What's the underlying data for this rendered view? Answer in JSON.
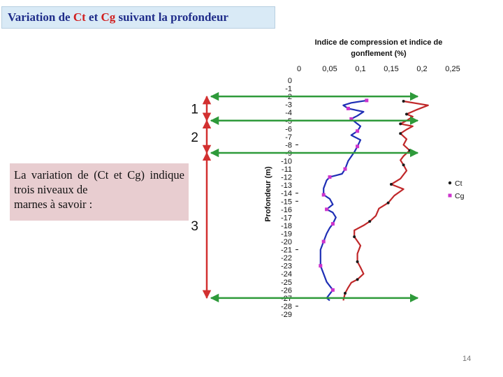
{
  "title": {
    "prefix": "Variation de ",
    "ct": "Ct",
    "middle": " et ",
    "cg": "Cg",
    "suffix": " suivant la profondeur"
  },
  "note": "La variation de (Ct et Cg) indique trois niveaux de",
  "note_last": "marnes à savoir :",
  "page_number": "14",
  "colors": {
    "ct": "#c0282a",
    "cg": "#1f2fb5",
    "ct_marker": "#1a1a1a",
    "cg_marker": "#cc33cc",
    "arrow_green": "#2e9a3a",
    "arrow_red": "#d23030"
  },
  "levels": [
    {
      "label": "1",
      "top_depth": -2,
      "bottom_depth": -5
    },
    {
      "label": "2",
      "top_depth": -5,
      "bottom_depth": -9
    },
    {
      "label": "3",
      "top_depth": -9,
      "bottom_depth": -27
    }
  ],
  "chart_data": {
    "type": "line",
    "title_lines": [
      "Indice de compression et indice de",
      "gonflement (%)"
    ],
    "ylabel": "Profondeur (m)",
    "xlim": [
      0,
      0.25
    ],
    "ylim": [
      -29,
      0
    ],
    "x_ticks": [
      "0",
      "0,05",
      "0,1",
      "0,15",
      "0,2",
      "0,25"
    ],
    "y_ticks": [
      "0",
      "-1",
      "-2",
      "-3",
      "-4",
      "-5",
      "-6",
      "-7",
      "-8",
      "-9",
      "-10",
      "-11",
      "-12",
      "-13",
      "-14",
      "-15",
      "-16",
      "-17",
      "-18",
      "-19",
      "-20",
      "-21",
      "-22",
      "-23",
      "-24",
      "-25",
      "-26",
      "-27",
      "-28",
      "-29"
    ],
    "y_tick_dash_depths": [
      -8,
      -9,
      -14,
      -15,
      -21,
      -27,
      -28
    ],
    "legend": [
      "Ct",
      "Cg"
    ],
    "series": [
      {
        "name": "Ct",
        "points": [
          [
            0.17,
            -2.6
          ],
          [
            0.21,
            -3.1
          ],
          [
            0.19,
            -3.7
          ],
          [
            0.175,
            -4.2
          ],
          [
            0.185,
            -4.5
          ],
          [
            0.175,
            -5.0
          ],
          [
            0.165,
            -5.4
          ],
          [
            0.185,
            -5.7
          ],
          [
            0.175,
            -6.1
          ],
          [
            0.165,
            -6.6
          ],
          [
            0.175,
            -7.3
          ],
          [
            0.17,
            -8.0
          ],
          [
            0.18,
            -8.7
          ],
          [
            0.17,
            -9.4
          ],
          [
            0.165,
            -9.9
          ],
          [
            0.17,
            -10.5
          ],
          [
            0.175,
            -11.2
          ],
          [
            0.165,
            -12.2
          ],
          [
            0.15,
            -12.9
          ],
          [
            0.17,
            -13.5
          ],
          [
            0.155,
            -14.3
          ],
          [
            0.145,
            -15.2
          ],
          [
            0.13,
            -15.9
          ],
          [
            0.125,
            -16.8
          ],
          [
            0.115,
            -17.5
          ],
          [
            0.105,
            -18.0
          ],
          [
            0.09,
            -18.6
          ],
          [
            0.09,
            -19.4
          ],
          [
            0.1,
            -20.5
          ],
          [
            0.095,
            -21.5
          ],
          [
            0.095,
            -22.5
          ],
          [
            0.1,
            -23.2
          ],
          [
            0.105,
            -24.0
          ],
          [
            0.095,
            -24.7
          ],
          [
            0.085,
            -25.1
          ],
          [
            0.08,
            -25.7
          ],
          [
            0.075,
            -26.4
          ],
          [
            0.072,
            -27.3
          ]
        ]
      },
      {
        "name": "Cg",
        "points": [
          [
            0.11,
            -2.5
          ],
          [
            0.085,
            -2.8
          ],
          [
            0.072,
            -3.1
          ],
          [
            0.08,
            -3.5
          ],
          [
            0.105,
            -3.9
          ],
          [
            0.095,
            -4.4
          ],
          [
            0.085,
            -4.8
          ],
          [
            0.095,
            -5.4
          ],
          [
            0.1,
            -5.7
          ],
          [
            0.095,
            -6.3
          ],
          [
            0.085,
            -6.8
          ],
          [
            0.1,
            -7.4
          ],
          [
            0.095,
            -8.2
          ],
          [
            0.09,
            -8.9
          ],
          [
            0.08,
            -10.0
          ],
          [
            0.075,
            -11.0
          ],
          [
            0.07,
            -11.6
          ],
          [
            0.06,
            -11.8
          ],
          [
            0.05,
            -12.0
          ],
          [
            0.045,
            -12.4
          ],
          [
            0.04,
            -13.4
          ],
          [
            0.04,
            -14.2
          ],
          [
            0.05,
            -14.7
          ],
          [
            0.055,
            -15.4
          ],
          [
            0.045,
            -16.0
          ],
          [
            0.055,
            -16.4
          ],
          [
            0.06,
            -17.0
          ],
          [
            0.055,
            -17.8
          ],
          [
            0.05,
            -18.3
          ],
          [
            0.045,
            -19.0
          ],
          [
            0.04,
            -20.0
          ],
          [
            0.035,
            -21.0
          ],
          [
            0.035,
            -22.0
          ],
          [
            0.035,
            -23.0
          ],
          [
            0.04,
            -24.0
          ],
          [
            0.045,
            -25.0
          ],
          [
            0.055,
            -26.0
          ],
          [
            0.045,
            -27.0
          ],
          [
            0.05,
            -27.3
          ]
        ]
      }
    ]
  }
}
